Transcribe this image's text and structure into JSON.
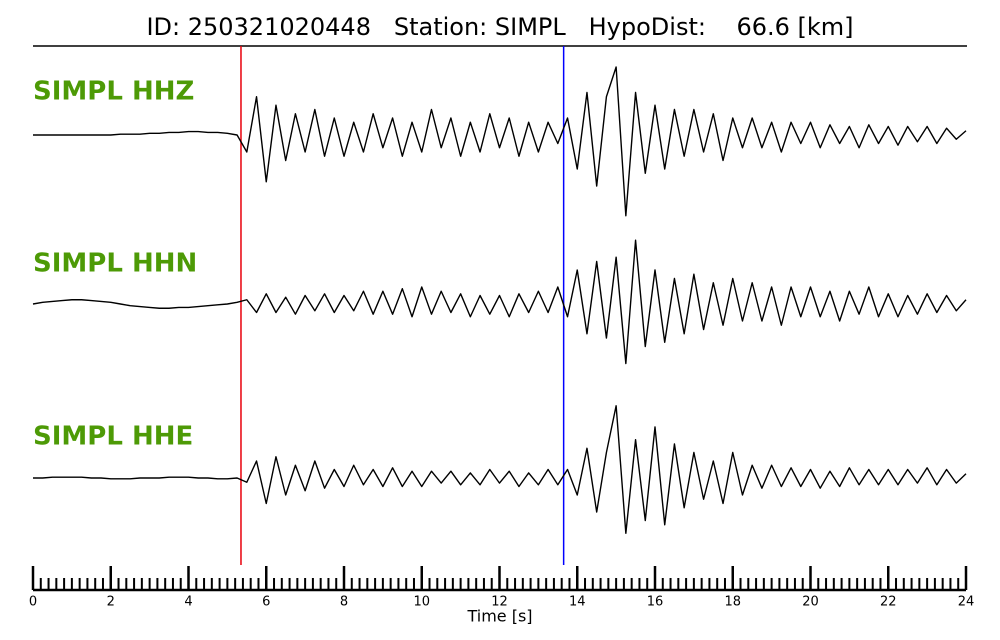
{
  "chart_data": {
    "type": "line",
    "title": "ID: 250321020448   Station: SIMPL   HypoDist:    66.6 [km]",
    "xlabel": "Time [s]",
    "xlim": [
      0,
      24
    ],
    "xticks": [
      0,
      2,
      4,
      6,
      8,
      10,
      12,
      14,
      16,
      18,
      20,
      22,
      24
    ],
    "xminor": 0.2,
    "ylim": [
      -1,
      1
    ],
    "markers": [
      {
        "x": 5.35,
        "color": "#e8000b"
      },
      {
        "x": 13.65,
        "color": "#0000ff"
      }
    ],
    "label_color": "#4d9a06",
    "x": [
      0,
      0.25,
      0.5,
      0.75,
      1,
      1.25,
      1.5,
      1.75,
      2,
      2.25,
      2.5,
      2.75,
      3,
      3.25,
      3.5,
      3.75,
      4,
      4.25,
      4.5,
      4.75,
      5,
      5.25,
      5.5,
      5.75,
      6,
      6.25,
      6.5,
      6.75,
      7,
      7.25,
      7.5,
      7.75,
      8,
      8.25,
      8.5,
      8.75,
      9,
      9.25,
      9.5,
      9.75,
      10,
      10.25,
      10.5,
      10.75,
      11,
      11.25,
      11.5,
      11.75,
      12,
      12.25,
      12.5,
      12.75,
      13,
      13.25,
      13.5,
      13.75,
      14,
      14.25,
      14.5,
      14.75,
      15,
      15.25,
      15.5,
      15.75,
      16,
      16.25,
      16.5,
      16.75,
      17,
      17.25,
      17.5,
      17.75,
      18,
      18.25,
      18.5,
      18.75,
      19,
      19.25,
      19.5,
      19.75,
      20,
      20.25,
      20.5,
      20.75,
      21,
      21.25,
      21.5,
      21.75,
      22,
      22.25,
      22.5,
      22.75,
      23,
      23.25,
      23.5,
      23.75,
      24
    ],
    "series": [
      {
        "name": "SIMPL HHZ",
        "color": "#000000",
        "values": [
          0,
          0,
          0,
          0,
          0,
          0,
          0,
          0,
          0,
          0.01,
          0.01,
          0.01,
          0.02,
          0.02,
          0.03,
          0.03,
          0.04,
          0.04,
          0.03,
          0.03,
          0.02,
          0,
          -0.2,
          0.45,
          -0.55,
          0.35,
          -0.3,
          0.25,
          -0.2,
          0.3,
          -0.25,
          0.2,
          -0.25,
          0.15,
          -0.2,
          0.25,
          -0.15,
          0.2,
          -0.25,
          0.15,
          -0.2,
          0.3,
          -0.15,
          0.2,
          -0.25,
          0.15,
          -0.2,
          0.25,
          -0.15,
          0.2,
          -0.25,
          0.15,
          -0.2,
          0.15,
          -0.1,
          0.2,
          -0.4,
          0.5,
          -0.6,
          0.45,
          0.8,
          -0.95,
          0.5,
          -0.45,
          0.35,
          -0.4,
          0.3,
          -0.25,
          0.3,
          -0.2,
          0.25,
          -0.3,
          0.2,
          -0.15,
          0.2,
          -0.15,
          0.15,
          -0.2,
          0.15,
          -0.1,
          0.15,
          -0.15,
          0.12,
          -0.1,
          0.1,
          -0.15,
          0.12,
          -0.1,
          0.1,
          -0.12,
          0.1,
          -0.08,
          0.1,
          -0.1,
          0.08,
          -0.05,
          0.05
        ]
      },
      {
        "name": "SIMPL HHN",
        "color": "#000000",
        "values": [
          0,
          0.02,
          0.03,
          0.04,
          0.05,
          0.05,
          0.04,
          0.03,
          0.02,
          0,
          -0.02,
          -0.03,
          -0.04,
          -0.05,
          -0.05,
          -0.04,
          -0.04,
          -0.03,
          -0.02,
          -0.01,
          0,
          0.02,
          0.05,
          -0.1,
          0.12,
          -0.1,
          0.08,
          -0.12,
          0.1,
          -0.08,
          0.12,
          -0.1,
          0.1,
          -0.08,
          0.15,
          -0.12,
          0.15,
          -0.12,
          0.18,
          -0.15,
          0.2,
          -0.12,
          0.15,
          -0.1,
          0.12,
          -0.15,
          0.1,
          -0.12,
          0.1,
          -0.15,
          0.12,
          -0.1,
          0.15,
          -0.1,
          0.2,
          -0.15,
          0.4,
          -0.35,
          0.5,
          -0.4,
          0.55,
          -0.7,
          0.75,
          -0.5,
          0.4,
          -0.45,
          0.3,
          -0.35,
          0.35,
          -0.3,
          0.25,
          -0.25,
          0.3,
          -0.2,
          0.25,
          -0.2,
          0.2,
          -0.25,
          0.2,
          -0.15,
          0.2,
          -0.15,
          0.15,
          -0.2,
          0.15,
          -0.12,
          0.2,
          -0.15,
          0.12,
          -0.15,
          0.1,
          -0.12,
          0.12,
          -0.1,
          0.1,
          -0.08,
          0.05
        ]
      },
      {
        "name": "SIMPL HHE",
        "color": "#000000",
        "values": [
          0,
          0,
          0.01,
          0.01,
          0.01,
          0.01,
          0,
          0,
          -0.01,
          -0.01,
          -0.01,
          0,
          0,
          0,
          0.01,
          0.01,
          0.01,
          0,
          0,
          -0.01,
          -0.01,
          0,
          -0.05,
          0.2,
          -0.3,
          0.25,
          -0.2,
          0.15,
          -0.15,
          0.2,
          -0.12,
          0.1,
          -0.1,
          0.15,
          -0.08,
          0.1,
          -0.1,
          0.12,
          -0.1,
          0.08,
          -0.1,
          0.08,
          -0.06,
          0.08,
          -0.08,
          0.06,
          -0.08,
          0.1,
          -0.06,
          0.08,
          -0.1,
          0.06,
          -0.08,
          0.1,
          -0.08,
          0.1,
          -0.2,
          0.35,
          -0.4,
          0.3,
          0.85,
          -0.65,
          0.45,
          -0.5,
          0.6,
          -0.55,
          0.4,
          -0.35,
          0.3,
          -0.25,
          0.2,
          -0.3,
          0.3,
          -0.2,
          0.15,
          -0.12,
          0.15,
          -0.1,
          0.12,
          -0.1,
          0.1,
          -0.12,
          0.08,
          -0.1,
          0.12,
          -0.08,
          0.1,
          -0.08,
          0.1,
          -0.08,
          0.1,
          -0.06,
          0.12,
          -0.08,
          0.1,
          -0.06,
          0.05
        ]
      }
    ]
  }
}
